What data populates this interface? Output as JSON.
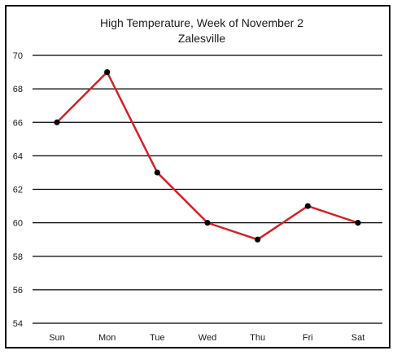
{
  "chart_data": {
    "type": "line",
    "title": "High Temperature, Week of November 2",
    "subtitle": "Zalesville",
    "categories": [
      "Sun",
      "Mon",
      "Tue",
      "Wed",
      "Thu",
      "Fri",
      "Sat"
    ],
    "series": [
      {
        "values": [
          66,
          69,
          63,
          60,
          59,
          61,
          60
        ],
        "color": "#d42027",
        "marker_color": "#000000"
      }
    ],
    "y_ticks": [
      "70",
      "68",
      "66",
      "64",
      "62",
      "60",
      "58",
      "56",
      "54"
    ],
    "ylim": [
      54,
      70
    ],
    "grid": true,
    "gridline_color": "#000000",
    "legend": "none"
  }
}
